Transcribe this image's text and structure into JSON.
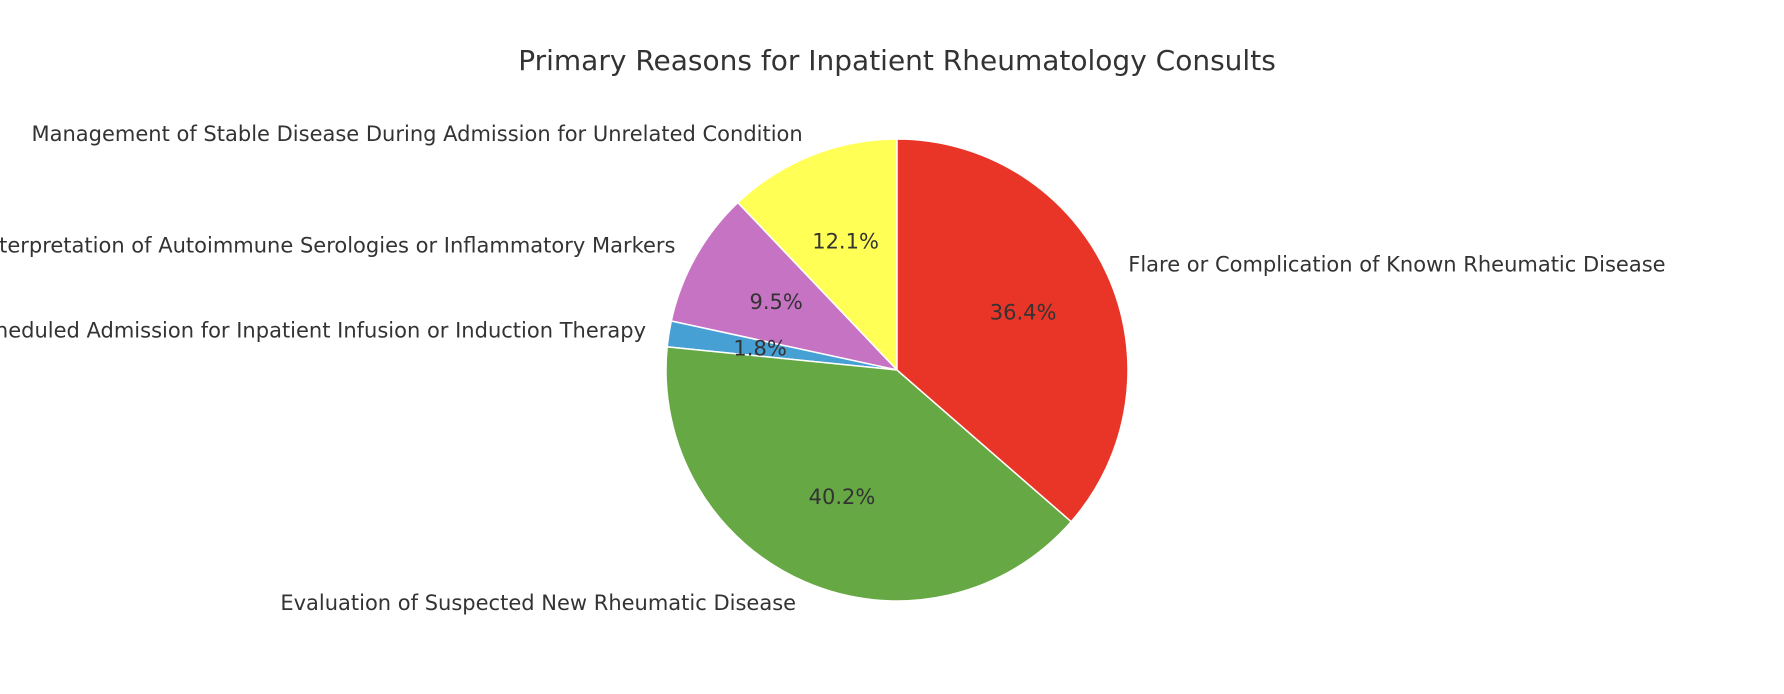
{
  "chart_data": {
    "type": "pie",
    "title": "Primary Reasons for Inpatient Rheumatology Consults",
    "start_angle_deg": 90,
    "direction": "counterclockwise",
    "slices": [
      {
        "label": "Management of Stable Disease During Admission for Unrelated Condition",
        "value": 12.1,
        "pct_label": "12.1%",
        "color": "#ffff55"
      },
      {
        "label": "Interpretation of Autoimmune Serologies or Inflammatory Markers",
        "value": 9.5,
        "pct_label": "9.5%",
        "color": "#c773c4"
      },
      {
        "label": "Scheduled Admission for Inpatient Infusion or Induction Therapy",
        "value": 1.8,
        "pct_label": "1.8%",
        "color": "#46a0d4"
      },
      {
        "label": "Evaluation of Suspected New Rheumatic Disease",
        "value": 40.2,
        "pct_label": "40.2%",
        "color": "#66a843"
      },
      {
        "label": "Flare or Complication of Known Rheumatic Disease",
        "value": 36.4,
        "pct_label": "36.4%",
        "color": "#e83527"
      }
    ]
  }
}
